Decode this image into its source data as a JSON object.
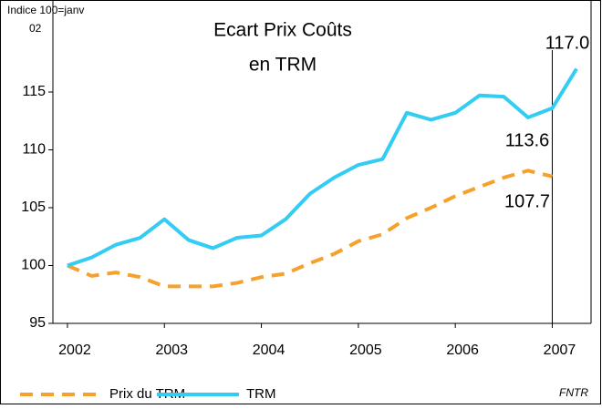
{
  "chart_data": {
    "type": "line",
    "title": [
      "Ecart Prix Coûts",
      "en TRM"
    ],
    "y_label": [
      "Indice 100=janv",
      "02"
    ],
    "source": "FNTR",
    "x": [
      2002,
      2002.25,
      2002.5,
      2002.75,
      2003,
      2003.25,
      2003.5,
      2003.75,
      2004,
      2004.25,
      2004.5,
      2004.75,
      2005,
      2005.25,
      2005.5,
      2005.75,
      2006,
      2006.25,
      2006.5,
      2006.75,
      2007,
      2007.25
    ],
    "series": [
      {
        "name": "Prix du TRM",
        "color": "#f7a12d",
        "dashed": true,
        "values": [
          100,
          99.1,
          99.4,
          99.0,
          98.2,
          98.2,
          98.2,
          98.5,
          99.0,
          99.3,
          100.2,
          101.0,
          102.1,
          102.7,
          104.1,
          105.0,
          106.0,
          106.8,
          107.6,
          108.2,
          107.7,
          null
        ]
      },
      {
        "name": "TRM",
        "color": "#33ccf2",
        "dashed": false,
        "values": [
          100,
          100.7,
          101.8,
          102.4,
          104.0,
          102.2,
          101.5,
          102.4,
          102.6,
          104.0,
          106.2,
          107.6,
          108.7,
          109.2,
          113.2,
          112.6,
          113.2,
          114.7,
          114.6,
          112.8,
          113.6,
          117.0
        ]
      }
    ],
    "annotations": [
      "117.0",
      "113.6",
      "107.7"
    ],
    "marker_x": 2007,
    "xlim": [
      2001.85,
      2007.4
    ],
    "ylim": [
      95,
      120
    ],
    "xticks": [
      2002,
      2003,
      2004,
      2005,
      2006,
      2007
    ],
    "yticks": [
      95,
      100,
      105,
      110,
      115
    ],
    "legend": "bottom-left"
  }
}
